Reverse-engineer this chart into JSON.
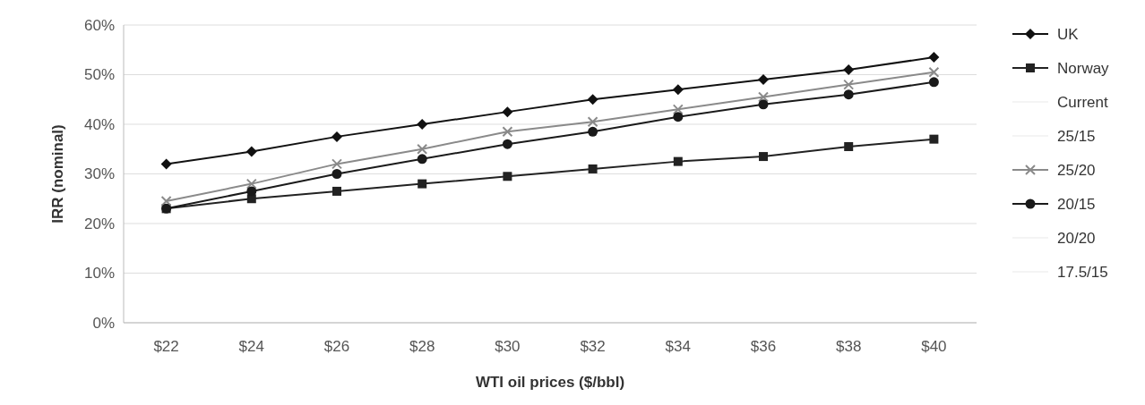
{
  "chart_data": {
    "type": "line",
    "xlabel": "WTI oil prices ($/bbl)",
    "ylabel": "IRR (nominal)",
    "categories": [
      "$22",
      "$24",
      "$26",
      "$28",
      "$30",
      "$32",
      "$34",
      "$36",
      "$38",
      "$40"
    ],
    "series": [
      {
        "name": "UK",
        "color": "#111111",
        "marker": "diamond",
        "values": [
          32,
          34.5,
          37.5,
          40,
          42.5,
          45,
          47,
          49,
          51,
          53.5
        ]
      },
      {
        "name": "Norway",
        "color": "#222222",
        "marker": "square",
        "values": [
          23,
          25,
          26.5,
          28,
          29.5,
          31,
          32.5,
          33.5,
          35.5,
          37
        ]
      },
      {
        "name": "Current",
        "color": "#f4f4f4",
        "marker": "none",
        "values": [
          null,
          null,
          null,
          null,
          null,
          null,
          null,
          null,
          null,
          null
        ]
      },
      {
        "name": "25/15",
        "color": "#f4f4f4",
        "marker": "none",
        "values": [
          null,
          null,
          null,
          null,
          null,
          null,
          null,
          null,
          null,
          null
        ]
      },
      {
        "name": "25/20",
        "color": "#8a8a8a",
        "marker": "cross",
        "values": [
          24.5,
          28,
          32,
          35,
          38.5,
          40.5,
          43,
          45.5,
          48,
          50.5
        ]
      },
      {
        "name": "20/15",
        "color": "#1a1a1a",
        "marker": "circle",
        "values": [
          23,
          26.5,
          30,
          33,
          36,
          38.5,
          41.5,
          44,
          46,
          48.5
        ]
      },
      {
        "name": "20/20",
        "color": "#f4f4f4",
        "marker": "none",
        "values": [
          null,
          null,
          null,
          null,
          null,
          null,
          null,
          null,
          null,
          null
        ]
      },
      {
        "name": "17.5/15",
        "color": "#f4f4f4",
        "marker": "none",
        "values": [
          null,
          null,
          null,
          null,
          null,
          null,
          null,
          null,
          null,
          null
        ]
      }
    ],
    "ylim": [
      0,
      60
    ],
    "yticks": [
      {
        "value": 0,
        "label": "0%"
      },
      {
        "value": 10,
        "label": "10%"
      },
      {
        "value": 20,
        "label": "20%"
      },
      {
        "value": 30,
        "label": "30%"
      },
      {
        "value": 40,
        "label": "40%"
      },
      {
        "value": 50,
        "label": "50%"
      },
      {
        "value": 60,
        "label": "60%"
      }
    ],
    "grid": "y",
    "legend": "right",
    "line_style": "solid"
  }
}
